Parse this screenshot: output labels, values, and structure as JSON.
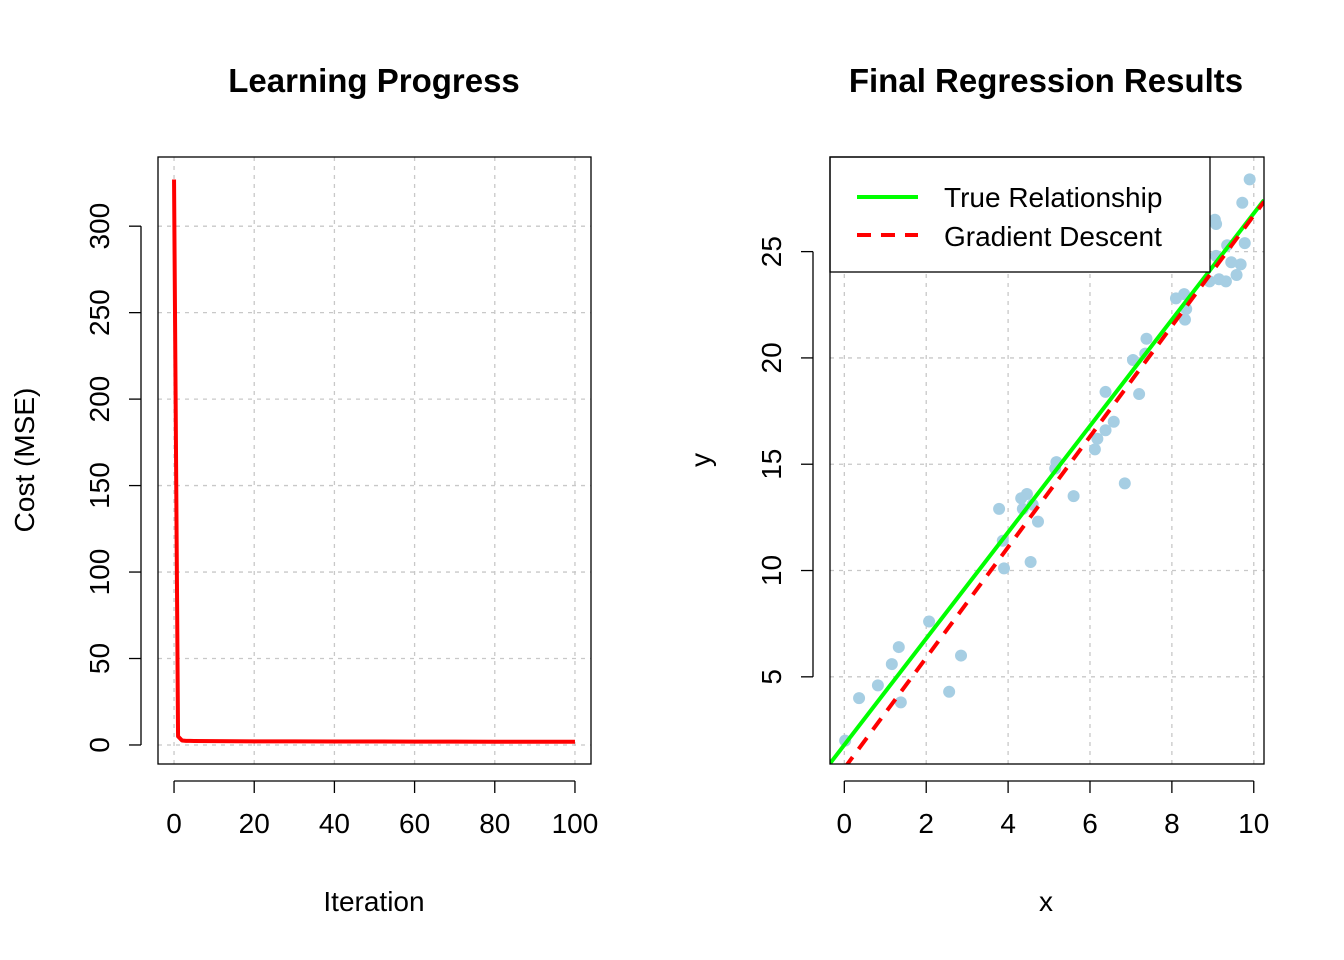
{
  "chart_data": [
    {
      "type": "line",
      "title": "Learning Progress",
      "xlabel": "Iteration",
      "ylabel": "Cost (MSE)",
      "xlim": [
        -4,
        104
      ],
      "ylim": [
        -11,
        340
      ],
      "x_ticks": [
        0,
        20,
        40,
        60,
        80,
        100
      ],
      "y_ticks": [
        0,
        50,
        100,
        150,
        200,
        250,
        300
      ],
      "grid": true,
      "series": [
        {
          "color": "#ff0000",
          "x": [
            0,
            1,
            2,
            3,
            4,
            5,
            10,
            20,
            30,
            40,
            50,
            60,
            70,
            80,
            90,
            100
          ],
          "y": [
            327,
            5.0,
            2.6,
            2.4,
            2.35,
            2.3,
            2.2,
            2.1,
            2.05,
            2.0,
            2.0,
            1.95,
            1.95,
            1.9,
            1.9,
            1.9
          ]
        }
      ]
    },
    {
      "type": "scatter",
      "title": "Final Regression Results",
      "xlabel": "x",
      "ylabel": "y",
      "xlim": [
        -0.35,
        10.25
      ],
      "ylim": [
        0.9,
        29.45
      ],
      "x_ticks": [
        0,
        2,
        4,
        6,
        8,
        10
      ],
      "y_ticks": [
        5,
        10,
        15,
        20,
        25
      ],
      "grid": true,
      "legend_position": "top-left",
      "point_color": "#a6cee3",
      "points": [
        [
          0.02,
          2.0
        ],
        [
          0.36,
          4.0
        ],
        [
          0.82,
          4.6
        ],
        [
          1.16,
          5.6
        ],
        [
          1.33,
          6.4
        ],
        [
          1.38,
          3.8
        ],
        [
          2.07,
          7.6
        ],
        [
          2.56,
          4.3
        ],
        [
          2.85,
          6.0
        ],
        [
          3.78,
          12.9
        ],
        [
          3.87,
          11.4
        ],
        [
          3.9,
          10.1
        ],
        [
          4.32,
          13.4
        ],
        [
          4.36,
          12.9
        ],
        [
          4.46,
          13.6
        ],
        [
          4.55,
          10.4
        ],
        [
          4.6,
          13.1
        ],
        [
          4.73,
          12.3
        ],
        [
          5.15,
          14.8
        ],
        [
          5.18,
          15.1
        ],
        [
          5.6,
          13.5
        ],
        [
          6.12,
          15.7
        ],
        [
          6.18,
          16.2
        ],
        [
          6.38,
          16.6
        ],
        [
          6.38,
          18.4
        ],
        [
          6.58,
          17.0
        ],
        [
          6.85,
          14.1
        ],
        [
          7.05,
          19.9
        ],
        [
          7.2,
          18.3
        ],
        [
          7.35,
          20.2
        ],
        [
          7.38,
          20.9
        ],
        [
          8.1,
          22.8
        ],
        [
          8.3,
          23.0
        ],
        [
          8.32,
          21.8
        ],
        [
          8.35,
          22.3
        ],
        [
          8.92,
          23.6
        ],
        [
          9.05,
          26.5
        ],
        [
          9.08,
          26.3
        ],
        [
          9.08,
          24.8
        ],
        [
          9.15,
          23.7
        ],
        [
          9.32,
          23.6
        ],
        [
          9.35,
          25.3
        ],
        [
          9.45,
          24.5
        ],
        [
          9.58,
          23.9
        ],
        [
          9.68,
          24.4
        ],
        [
          9.72,
          27.3
        ],
        [
          9.78,
          25.4
        ],
        [
          9.9,
          28.4
        ]
      ],
      "series": [
        {
          "name": "True Relationship",
          "color": "#00ff00",
          "dash": "solid",
          "intercept": 1.8,
          "slope": 2.5
        },
        {
          "name": "Gradient Descent",
          "color": "#ff0000",
          "dash": "dashed",
          "intercept": 0.7,
          "slope": 2.6
        }
      ]
    }
  ]
}
